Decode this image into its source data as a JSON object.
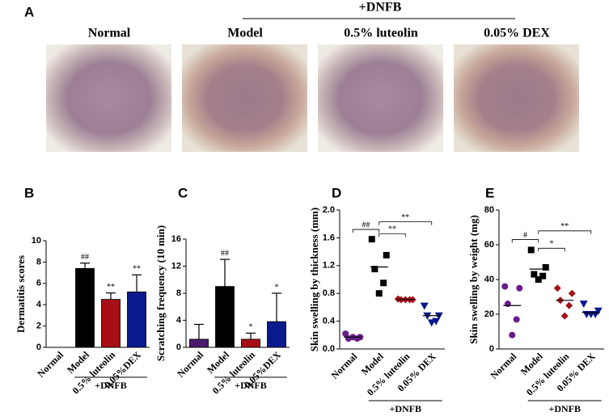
{
  "panel_a": {
    "letter": "A",
    "group_label": "+DNFB",
    "labels": [
      "Normal",
      "Model",
      "0.5% luteolin",
      "0.05% DEX"
    ]
  },
  "chart_data": [
    {
      "type": "bar",
      "panel": "B",
      "ylabel": "Dermatitis scores",
      "categories": [
        "Normal",
        "Model",
        "0.5% luteolin",
        "0.05%DEX"
      ],
      "values": [
        0,
        7.4,
        4.5,
        5.2
      ],
      "errors": [
        0,
        0.5,
        0.6,
        1.6
      ],
      "colors": [
        "#4b1a6e",
        "#000000",
        "#a50f15",
        "#0a1a8c"
      ],
      "annotations": [
        null,
        "##",
        "**",
        "**"
      ],
      "ylim": [
        0,
        10
      ],
      "yticks": [
        0,
        2,
        4,
        6,
        8,
        10
      ],
      "group_label": "+DNFB"
    },
    {
      "type": "bar",
      "panel": "C",
      "ylabel": "Scratching frequency (10 min)",
      "categories": [
        "Normal",
        "Model",
        "0.5% luteolin",
        "0.05%DEX"
      ],
      "values": [
        1.2,
        9,
        1.2,
        3.8
      ],
      "errors": [
        2.2,
        4,
        0.9,
        4.2
      ],
      "colors": [
        "#4b1a6e",
        "#000000",
        "#a50f15",
        "#0a1a8c"
      ],
      "annotations": [
        null,
        "##",
        "*",
        "*"
      ],
      "ylim": [
        0,
        16
      ],
      "yticks": [
        0,
        4,
        8,
        12,
        16
      ],
      "group_label": "+DNFB"
    },
    {
      "type": "strip",
      "panel": "D",
      "ylabel": "Skin swelling by thickness (mm)",
      "categories": [
        "Normal",
        "Model",
        "0.5% luteolin",
        "0.05% DEX"
      ],
      "points": [
        [
          0.22,
          0.17,
          0.15,
          0.15,
          0.17
        ],
        [
          1.58,
          1.35,
          1.15,
          0.95,
          0.8
        ],
        [
          0.72,
          0.71,
          0.71,
          0.71,
          0.71
        ],
        [
          0.62,
          0.48,
          0.48,
          0.4,
          0.38
        ]
      ],
      "means": [
        0.17,
        1.18,
        0.71,
        0.48
      ],
      "colors": [
        "#6a1b8a",
        "#000000",
        "#a50f15",
        "#0a1a8c"
      ],
      "markers": [
        "circle",
        "square",
        "diamond",
        "triangle-down"
      ],
      "brackets": [
        {
          "label": "##",
          "between": [
            "Normal",
            "Model"
          ],
          "y": 1.72
        },
        {
          "label": "**",
          "between": [
            "Model",
            "0.5% luteolin"
          ],
          "y": 1.66
        },
        {
          "label": "**",
          "between": [
            "Model",
            "0.05% DEX"
          ],
          "y": 1.83
        }
      ],
      "ylim": [
        0,
        2
      ],
      "yticks": [
        {
          "value": 0,
          "label": "0.0"
        },
        0.4,
        0.8,
        1.2,
        1.6,
        {
          "value": 2,
          "label": "2.0"
        }
      ],
      "group_label": "+DNFB"
    },
    {
      "type": "strip",
      "panel": "E",
      "ylabel": "Skin swelling by weight (mg)",
      "categories": [
        "Normal",
        "Model",
        "0.5% luteolin",
        "0.05% DEX"
      ],
      "points": [
        [
          36,
          35,
          26,
          17,
          8
        ],
        [
          57,
          47,
          43,
          42,
          40
        ],
        [
          35,
          32,
          28,
          25,
          19
        ],
        [
          26,
          22,
          20,
          20,
          20
        ]
      ],
      "means": [
        25,
        46,
        28,
        21
      ],
      "colors": [
        "#6a1b8a",
        "#000000",
        "#a50f15",
        "#0a1a8c"
      ],
      "markers": [
        "circle",
        "square",
        "diamond",
        "triangle-down"
      ],
      "brackets": [
        {
          "label": "#",
          "between": [
            "Normal",
            "Model"
          ],
          "y": 63
        },
        {
          "label": "*",
          "between": [
            "Model",
            "0.5% luteolin"
          ],
          "y": 58
        },
        {
          "label": "**",
          "between": [
            "Model",
            "0.05% DEX"
          ],
          "y": 68
        }
      ],
      "ylim": [
        0,
        80
      ],
      "yticks": [
        0,
        20,
        40,
        60,
        80
      ],
      "group_label": "+DNFB"
    }
  ]
}
